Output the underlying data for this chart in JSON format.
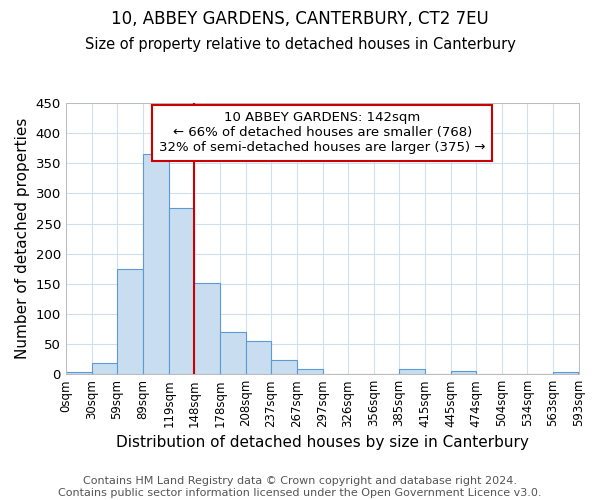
{
  "title1": "10, ABBEY GARDENS, CANTERBURY, CT2 7EU",
  "title2": "Size of property relative to detached houses in Canterbury",
  "xlabel": "Distribution of detached houses by size in Canterbury",
  "ylabel": "Number of detached properties",
  "footer": "Contains HM Land Registry data © Crown copyright and database right 2024.\nContains public sector information licensed under the Open Government Licence v3.0.",
  "bin_edges": [
    0,
    30,
    59,
    89,
    119,
    148,
    178,
    208,
    237,
    267,
    297,
    326,
    356,
    385,
    415,
    445,
    474,
    504,
    534,
    563,
    593
  ],
  "bin_labels": [
    "0sqm",
    "30sqm",
    "59sqm",
    "89sqm",
    "119sqm",
    "148sqm",
    "178sqm",
    "208sqm",
    "237sqm",
    "267sqm",
    "297sqm",
    "326sqm",
    "356sqm",
    "385sqm",
    "415sqm",
    "445sqm",
    "474sqm",
    "504sqm",
    "534sqm",
    "563sqm",
    "593sqm"
  ],
  "bar_heights": [
    3,
    18,
    175,
    365,
    275,
    152,
    70,
    55,
    23,
    8,
    0,
    0,
    0,
    8,
    0,
    5,
    0,
    0,
    0,
    3
  ],
  "bar_facecolor": "#c8ddf0",
  "bar_edgecolor": "#5b9bd5",
  "vline_x": 148,
  "vline_color": "#cc0000",
  "ylim": [
    0,
    450
  ],
  "yticks": [
    0,
    50,
    100,
    150,
    200,
    250,
    300,
    350,
    400,
    450
  ],
  "annotation_text": "10 ABBEY GARDENS: 142sqm\n← 66% of detached houses are smaller (768)\n32% of semi-detached houses are larger (375) →",
  "annotation_box_edgecolor": "#cc0000",
  "background_color": "#ffffff",
  "plot_bg_color": "#ffffff",
  "grid_color": "#d0dff0",
  "title_fontsize": 12,
  "subtitle_fontsize": 10.5,
  "axis_label_fontsize": 11,
  "tick_fontsize": 8.5,
  "annotation_fontsize": 9.5,
  "footer_fontsize": 8
}
